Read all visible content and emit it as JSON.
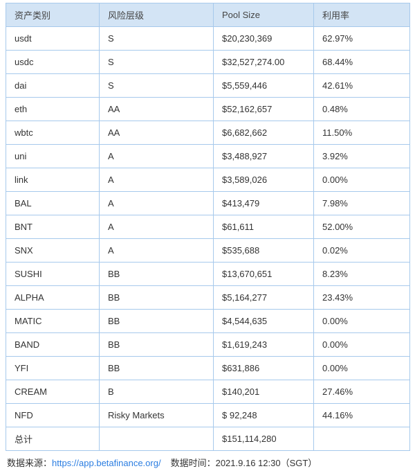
{
  "chart_data": {
    "type": "table",
    "columns": [
      "资产类别",
      "风险层级",
      "Pool Size",
      "利用率"
    ],
    "rows": [
      [
        "usdt",
        "S",
        "$20,230,369",
        "62.97%"
      ],
      [
        "usdc",
        "S",
        "$32,527,274.00",
        "68.44%"
      ],
      [
        "dai",
        "S",
        "$5,559,446",
        "42.61%"
      ],
      [
        "eth",
        "AA",
        "$52,162,657",
        "0.48%"
      ],
      [
        "wbtc",
        "AA",
        "$6,682,662",
        "11.50%"
      ],
      [
        "uni",
        "A",
        "$3,488,927",
        "3.92%"
      ],
      [
        "link",
        "A",
        "$3,589,026",
        "0.00%"
      ],
      [
        "BAL",
        "A",
        "$413,479",
        "7.98%"
      ],
      [
        "BNT",
        "A",
        "$61,611",
        "52.00%"
      ],
      [
        "SNX",
        "A",
        "$535,688",
        "0.02%"
      ],
      [
        "SUSHI",
        "BB",
        "$13,670,651",
        "8.23%"
      ],
      [
        "ALPHA",
        "BB",
        "$5,164,277",
        "23.43%"
      ],
      [
        "MATIC",
        "BB",
        "$4,544,635",
        "0.00%"
      ],
      [
        "BAND",
        "BB",
        "$1,619,243",
        "0.00%"
      ],
      [
        "YFI",
        "BB",
        "$631,886",
        "0.00%"
      ],
      [
        "CREAM",
        "B",
        "$140,201",
        "27.46%"
      ],
      [
        "NFD",
        "Risky Markets",
        "$ 92,248",
        "44.16%"
      ],
      [
        "总计",
        "",
        "$151,114,280",
        ""
      ]
    ]
  },
  "footer": {
    "source_label": "数据来源：",
    "source_link": "https://app.betafinance.org/",
    "time_label": "数据时间：",
    "time_value": "2021.9.16 12:30（SGT）"
  },
  "colors": {
    "header_bg": "#d3e4f5",
    "border": "#a6c9ec",
    "link": "#2a7de1",
    "text": "#333333"
  }
}
